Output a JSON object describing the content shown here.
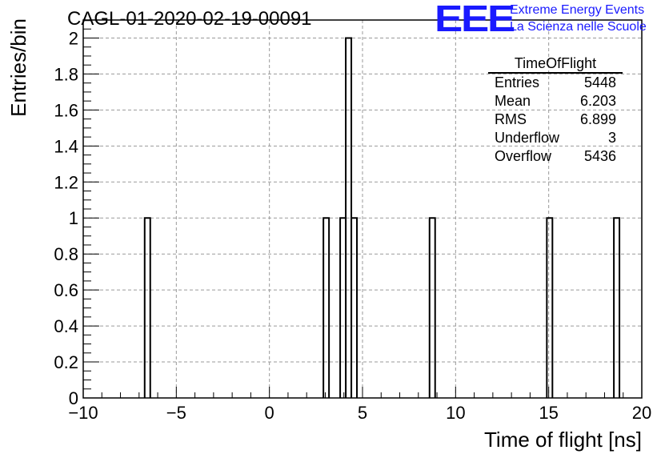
{
  "header": {
    "title": "CAGL-01-2020-02-19-00091",
    "logo_text": "EEE",
    "logo_line1": "Extreme Energy Events",
    "logo_line2": "La Scienza nelle Scuole"
  },
  "stats_box": {
    "title": "TimeOfFlight",
    "rows": [
      {
        "label": "Entries",
        "value": "5448"
      },
      {
        "label": "Mean",
        "value": "6.203"
      },
      {
        "label": "RMS",
        "value": "6.899"
      },
      {
        "label": "Underflow",
        "value": "3"
      },
      {
        "label": "Overflow",
        "value": "5436"
      }
    ]
  },
  "colors": {
    "logo": "#1a1aff",
    "histogram_line": "#000000",
    "grid": "#9a9a9a"
  },
  "chart_data": {
    "type": "bar",
    "histogram_style": "step",
    "xlabel": "Time of flight [ns]",
    "ylabel": "Entries/bin",
    "xlim": [
      -10,
      20
    ],
    "ylim": [
      0,
      2.1
    ],
    "grid": true,
    "legend": "top-right",
    "bin_width": 0.3,
    "bins": [
      {
        "x0": -6.7,
        "x1": -6.4,
        "count": 1
      },
      {
        "x0": 2.9,
        "x1": 3.2,
        "count": 1
      },
      {
        "x0": 3.8,
        "x1": 4.1,
        "count": 1
      },
      {
        "x0": 4.1,
        "x1": 4.4,
        "count": 2
      },
      {
        "x0": 4.4,
        "x1": 4.7,
        "count": 1
      },
      {
        "x0": 8.6,
        "x1": 8.9,
        "count": 1
      },
      {
        "x0": 14.9,
        "x1": 15.2,
        "count": 1
      },
      {
        "x0": 18.5,
        "x1": 18.8,
        "count": 1
      }
    ],
    "x_ticks": [
      "−10",
      "−5",
      "0",
      "5",
      "10",
      "15",
      "20"
    ],
    "x_tick_values": [
      -10,
      -5,
      0,
      5,
      10,
      15,
      20
    ],
    "y_ticks": [
      "0",
      "0.2",
      "0.4",
      "0.6",
      "0.8",
      "1",
      "1.2",
      "1.4",
      "1.6",
      "1.8",
      "2"
    ],
    "y_tick_values": [
      0,
      0.2,
      0.4,
      0.6,
      0.8,
      1,
      1.2,
      1.4,
      1.6,
      1.8,
      2
    ]
  }
}
